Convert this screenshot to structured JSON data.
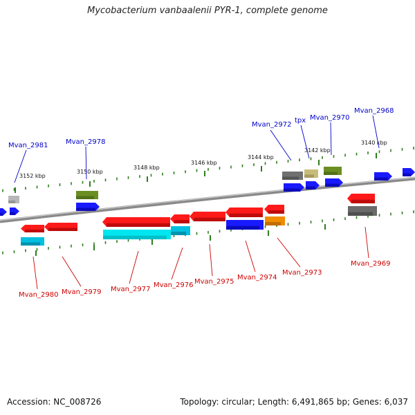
{
  "title": "Mycobacterium vanbaalenii PYR-1, complete genome",
  "footer": {
    "accession": "Accession: NC_008726",
    "summary": "Topology: circular; Length: 6,491,865 bp; Genes: 6,037"
  },
  "colors": {
    "upper_label": "#0000cc",
    "lower_label": "#cc0000",
    "backbone": "#8a8a8a",
    "tick": "#2e7d1e"
  },
  "scale_labels": [
    "3152 kbp",
    "3150 kbp",
    "3148 kbp",
    "3146 kbp",
    "3144 kbp",
    "3142 kbp",
    "3140 kbp"
  ],
  "upper_genes": [
    "Mvan_2981",
    "Mvan_2978",
    "Mvan_2972",
    "tpx",
    "Mvan_2970",
    "Mvan_2968"
  ],
  "lower_genes": [
    "Mvan_2980",
    "Mvan_2979",
    "Mvan_2977",
    "Mvan_2976",
    "Mvan_2975",
    "Mvan_2974",
    "Mvan_2973",
    "Mvan_2969"
  ]
}
